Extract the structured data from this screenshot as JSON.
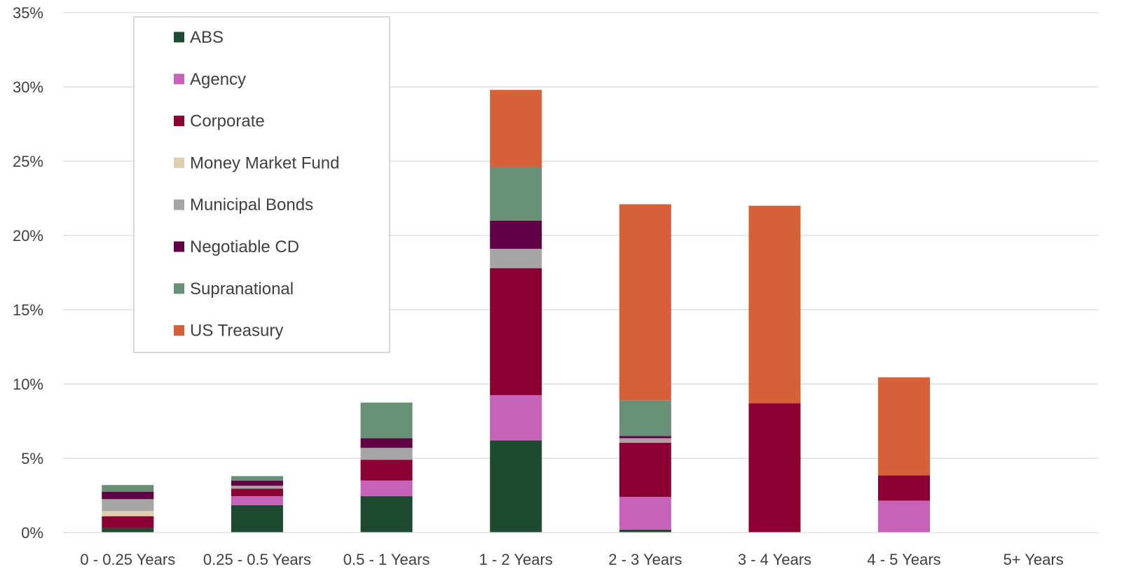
{
  "chart_data": {
    "type": "bar",
    "stacked": true,
    "categories": [
      "0 - 0.25 Years",
      "0.25 - 0.5 Years",
      "0.5 - 1 Years",
      "1 - 2 Years",
      "2 - 3 Years",
      "3 - 4 Years",
      "4 - 5 Years",
      "5+ Years"
    ],
    "series": [
      {
        "name": "ABS",
        "color": "#1f4a32",
        "values": [
          0.3,
          1.85,
          2.45,
          6.2,
          0.2,
          0,
          0,
          0
        ]
      },
      {
        "name": "Agency",
        "color": "#c861b8",
        "values": [
          0,
          0.6,
          1.05,
          3.05,
          2.2,
          0,
          2.15,
          0
        ]
      },
      {
        "name": "Corporate",
        "color": "#8a0033",
        "values": [
          0.8,
          0.5,
          1.4,
          8.55,
          3.65,
          8.7,
          1.7,
          0
        ]
      },
      {
        "name": "Money Market Fund",
        "color": "#e0cfae",
        "values": [
          0.35,
          0,
          0,
          0,
          0,
          0,
          0,
          0
        ]
      },
      {
        "name": "Municipal Bonds",
        "color": "#a5a5a5",
        "values": [
          0.8,
          0.2,
          0.8,
          1.3,
          0.3,
          0,
          0,
          0
        ]
      },
      {
        "name": "Negotiable CD",
        "color": "#620046",
        "values": [
          0.5,
          0.35,
          0.65,
          1.9,
          0.15,
          0,
          0,
          0
        ]
      },
      {
        "name": "Supranational",
        "color": "#689077",
        "values": [
          0.45,
          0.3,
          2.4,
          3.6,
          2.4,
          0,
          0,
          0
        ]
      },
      {
        "name": "US Treasury",
        "color": "#d66038",
        "values": [
          0,
          0,
          0,
          5.2,
          13.2,
          13.3,
          6.6,
          0
        ]
      }
    ],
    "ylim": [
      0,
      35
    ],
    "yticks": [
      "0%",
      "5%",
      "10%",
      "15%",
      "20%",
      "25%",
      "30%",
      "35%"
    ],
    "ytick_values": [
      0,
      5,
      10,
      15,
      20,
      25,
      30,
      35
    ],
    "grid": true,
    "legend": "top-left"
  }
}
